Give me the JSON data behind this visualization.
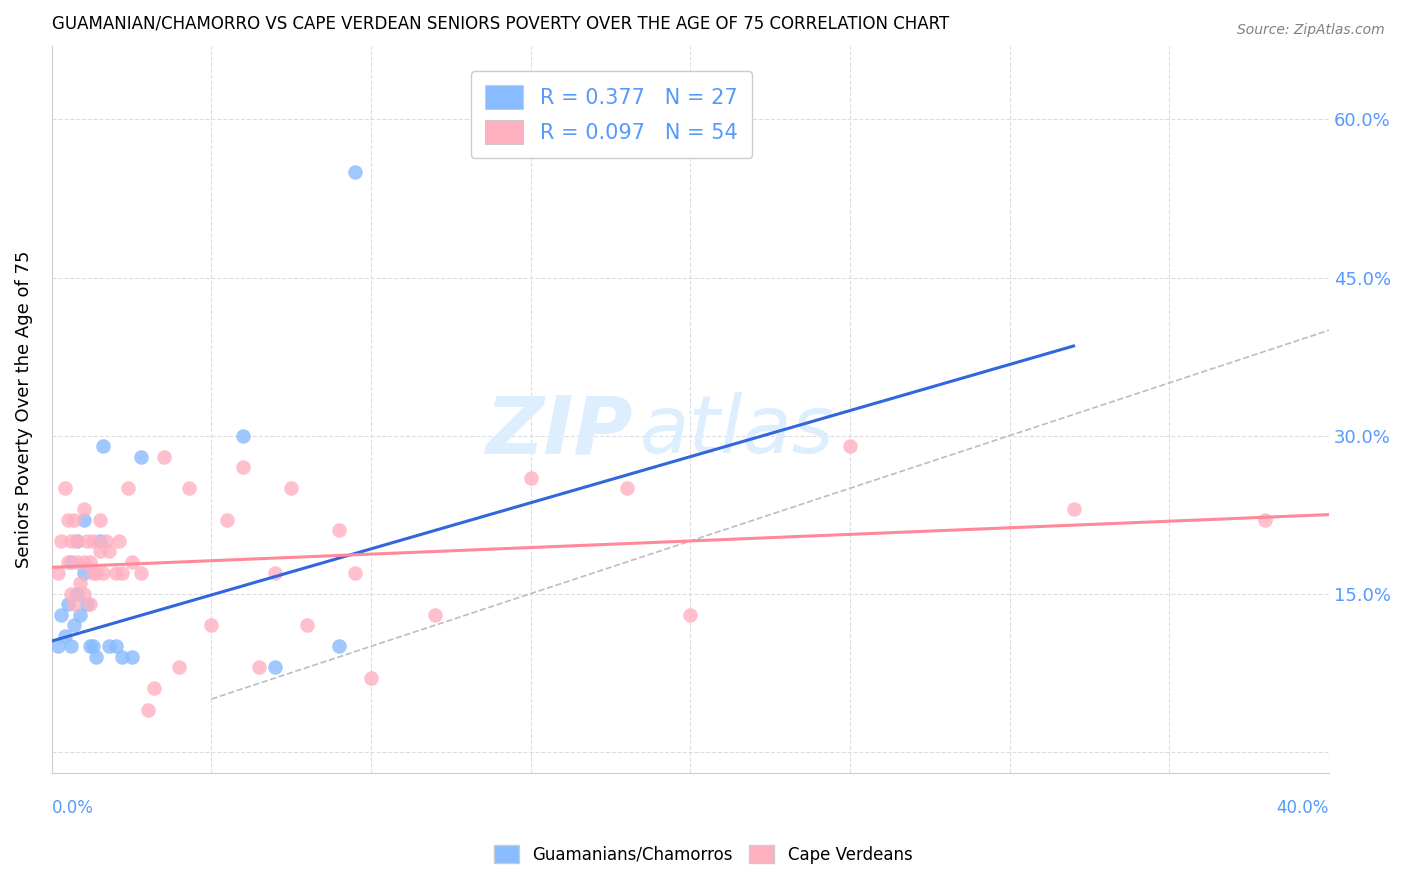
{
  "title": "GUAMANIAN/CHAMORRO VS CAPE VERDEAN SENIORS POVERTY OVER THE AGE OF 75 CORRELATION CHART",
  "source": "Source: ZipAtlas.com",
  "ylabel": "Seniors Poverty Over the Age of 75",
  "yticks": [
    0.0,
    0.15,
    0.3,
    0.45,
    0.6
  ],
  "ytick_labels": [
    "",
    "15.0%",
    "30.0%",
    "45.0%",
    "60.0%"
  ],
  "xlim": [
    0.0,
    0.4
  ],
  "ylim": [
    -0.02,
    0.67
  ],
  "legend_r1": "R = 0.377",
  "legend_n1": "N = 27",
  "legend_r2": "R = 0.097",
  "legend_n2": "N = 54",
  "color_blue": "#88BBFF",
  "color_pink": "#FFB0C0",
  "color_blue_text": "#5599FF",
  "diag_line_color": "#BBBBCC",
  "blue_line_color": "#3366DD",
  "pink_line_color": "#FF8899",
  "guamanian_x": [
    0.002,
    0.003,
    0.004,
    0.005,
    0.006,
    0.006,
    0.007,
    0.008,
    0.008,
    0.009,
    0.01,
    0.01,
    0.011,
    0.012,
    0.013,
    0.014,
    0.015,
    0.016,
    0.018,
    0.02,
    0.022,
    0.025,
    0.028,
    0.06,
    0.07,
    0.09,
    0.095
  ],
  "guamanian_y": [
    0.1,
    0.13,
    0.11,
    0.14,
    0.1,
    0.18,
    0.12,
    0.15,
    0.2,
    0.13,
    0.17,
    0.22,
    0.14,
    0.1,
    0.1,
    0.09,
    0.2,
    0.29,
    0.1,
    0.1,
    0.09,
    0.09,
    0.28,
    0.3,
    0.08,
    0.1,
    0.55
  ],
  "capeverdean_x": [
    0.002,
    0.003,
    0.004,
    0.005,
    0.005,
    0.006,
    0.006,
    0.007,
    0.007,
    0.008,
    0.008,
    0.009,
    0.01,
    0.01,
    0.01,
    0.011,
    0.012,
    0.012,
    0.013,
    0.013,
    0.014,
    0.015,
    0.015,
    0.016,
    0.017,
    0.018,
    0.02,
    0.021,
    0.022,
    0.024,
    0.025,
    0.028,
    0.03,
    0.032,
    0.035,
    0.04,
    0.043,
    0.05,
    0.055,
    0.06,
    0.065,
    0.07,
    0.075,
    0.08,
    0.09,
    0.095,
    0.1,
    0.12,
    0.15,
    0.18,
    0.2,
    0.25,
    0.32,
    0.38
  ],
  "capeverdean_y": [
    0.17,
    0.2,
    0.25,
    0.18,
    0.22,
    0.15,
    0.2,
    0.14,
    0.22,
    0.18,
    0.2,
    0.16,
    0.15,
    0.18,
    0.23,
    0.2,
    0.14,
    0.18,
    0.17,
    0.2,
    0.17,
    0.19,
    0.22,
    0.17,
    0.2,
    0.19,
    0.17,
    0.2,
    0.17,
    0.25,
    0.18,
    0.17,
    0.04,
    0.06,
    0.28,
    0.08,
    0.25,
    0.12,
    0.22,
    0.27,
    0.08,
    0.17,
    0.25,
    0.12,
    0.21,
    0.17,
    0.07,
    0.13,
    0.26,
    0.25,
    0.13,
    0.29,
    0.23,
    0.22
  ],
  "blue_line_x": [
    0.0,
    0.32
  ],
  "blue_line_y": [
    0.105,
    0.385
  ],
  "pink_line_x": [
    0.0,
    0.4
  ],
  "pink_line_y": [
    0.175,
    0.225
  ],
  "diag_line_x": [
    0.05,
    0.4
  ],
  "diag_line_y": [
    0.05,
    0.4
  ]
}
